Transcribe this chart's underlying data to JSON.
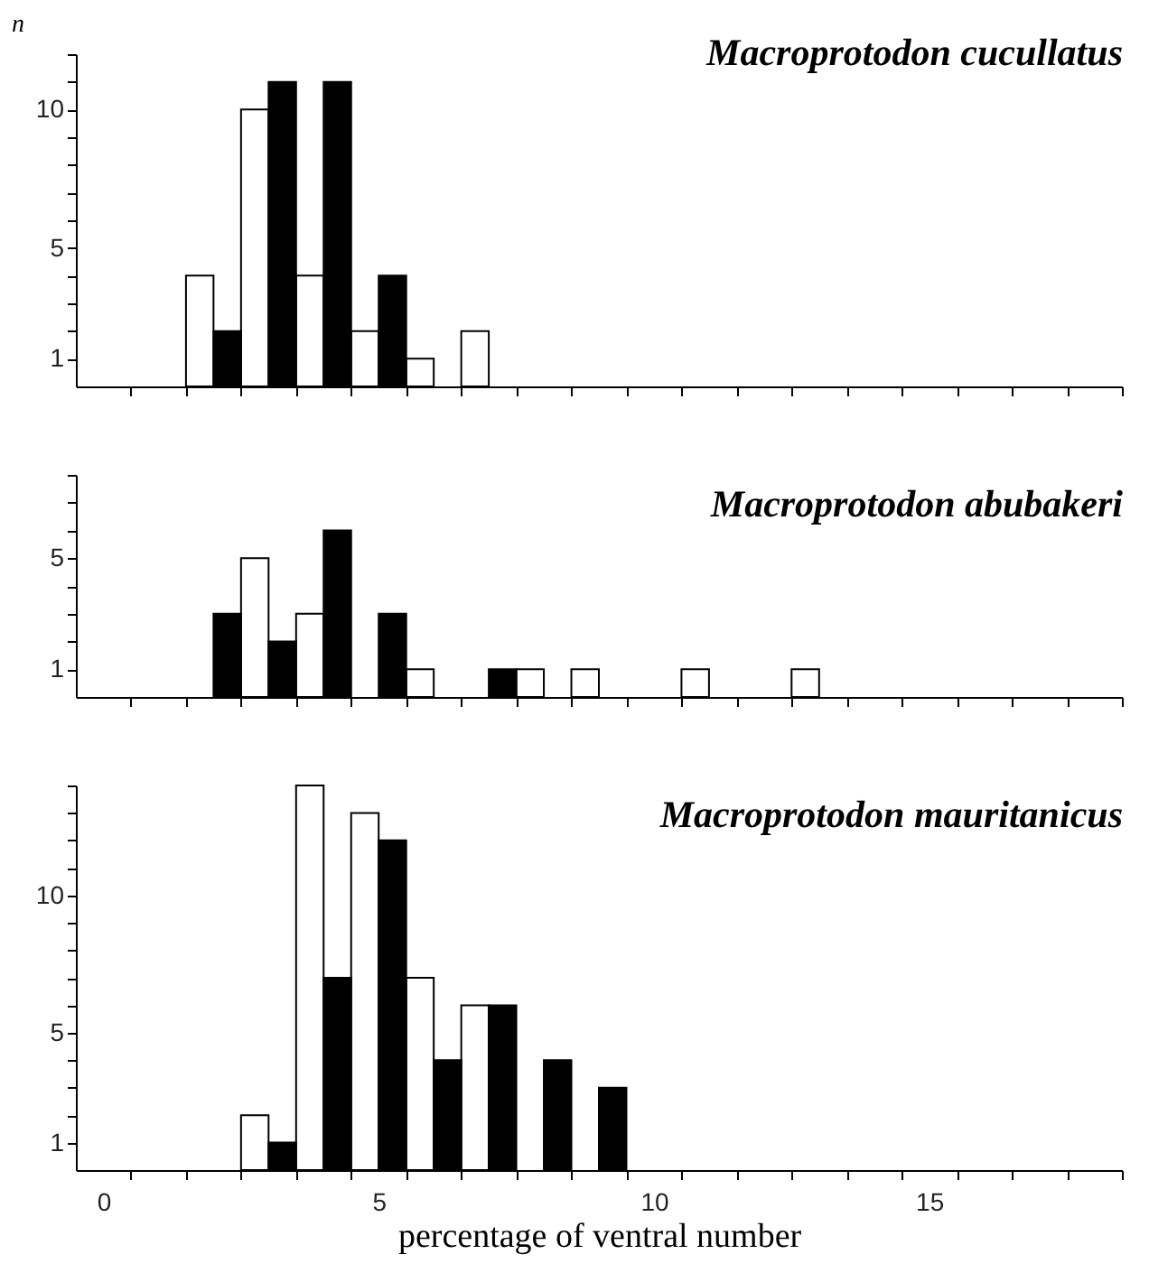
{
  "chart_data": [
    {
      "type": "bar",
      "title": "Macroprotodon  cucullatus",
      "ylabel": "n",
      "x": [
        2,
        3,
        4,
        5,
        6,
        7
      ],
      "series": [
        {
          "color": "#ffffff",
          "values": [
            4,
            10,
            4,
            2,
            1,
            2
          ]
        },
        {
          "color": "#000000",
          "values": [
            2,
            11,
            11,
            4,
            null,
            null
          ]
        }
      ],
      "xlim": [
        -0.5,
        18.5
      ],
      "xticks": [
        {
          "value": 0.5,
          "label": null
        },
        {
          "value": 1.5,
          "label": null
        },
        {
          "value": 2.5,
          "label": null
        },
        {
          "value": 3.5,
          "label": null
        },
        {
          "value": 4.5,
          "label": null
        },
        {
          "value": 5.5,
          "label": null
        },
        {
          "value": 6.5,
          "label": null
        },
        {
          "value": 7.5,
          "label": null
        },
        {
          "value": 8.5,
          "label": null
        },
        {
          "value": 9.5,
          "label": null
        },
        {
          "value": 10.5,
          "label": null
        },
        {
          "value": 11.5,
          "label": null
        },
        {
          "value": 12.5,
          "label": null
        },
        {
          "value": 13.5,
          "label": null
        },
        {
          "value": 14.5,
          "label": null
        },
        {
          "value": 15.5,
          "label": null
        },
        {
          "value": 16.5,
          "label": null
        },
        {
          "value": 17.5,
          "label": null
        },
        {
          "value": 18.5,
          "label": null
        }
      ],
      "ylim": [
        0,
        12
      ],
      "yticks": [
        1,
        {
          "value": 2,
          "label": null
        },
        {
          "value": 3,
          "label": null
        },
        {
          "value": 4,
          "label": null
        },
        5,
        {
          "value": 6,
          "label": null
        },
        {
          "value": 7,
          "label": null
        },
        {
          "value": 8,
          "label": null
        },
        {
          "value": 9,
          "label": null
        },
        10,
        {
          "value": 11,
          "label": null
        },
        {
          "value": 12,
          "label": null
        }
      ],
      "tick_labels": "y"
    },
    {
      "type": "bar",
      "title": "Macroprotodon  abubakeri",
      "x": [
        2,
        3,
        4,
        5,
        6,
        7,
        8,
        9,
        11,
        13
      ],
      "series": [
        {
          "color": "#ffffff",
          "values": [
            null,
            5,
            3,
            null,
            1,
            null,
            1,
            1,
            1,
            1
          ]
        },
        {
          "color": "#000000",
          "values": [
            3,
            2,
            6,
            3,
            null,
            1,
            null,
            null,
            null,
            null
          ]
        }
      ],
      "xlim": [
        -0.5,
        18.5
      ],
      "xticks": [
        {
          "value": 0.5,
          "label": null
        },
        {
          "value": 1.5,
          "label": null
        },
        {
          "value": 2.5,
          "label": null
        },
        {
          "value": 3.5,
          "label": null
        },
        {
          "value": 4.5,
          "label": null
        },
        {
          "value": 5.5,
          "label": null
        },
        {
          "value": 6.5,
          "label": null
        },
        {
          "value": 7.5,
          "label": null
        },
        {
          "value": 8.5,
          "label": null
        },
        {
          "value": 9.5,
          "label": null
        },
        {
          "value": 10.5,
          "label": null
        },
        {
          "value": 11.5,
          "label": null
        },
        {
          "value": 12.5,
          "label": null
        },
        {
          "value": 13.5,
          "label": null
        },
        {
          "value": 14.5,
          "label": null
        },
        {
          "value": 15.5,
          "label": null
        },
        {
          "value": 16.5,
          "label": null
        },
        {
          "value": 17.5,
          "label": null
        },
        {
          "value": 18.5,
          "label": null
        }
      ],
      "ylim": [
        0,
        8
      ],
      "yticks": [
        1,
        {
          "value": 2,
          "label": null
        },
        {
          "value": 3,
          "label": null
        },
        {
          "value": 4,
          "label": null
        },
        5,
        {
          "value": 6,
          "label": null
        },
        {
          "value": 7,
          "label": null
        },
        {
          "value": 8,
          "label": null
        }
      ],
      "tick_labels": "y"
    },
    {
      "type": "bar",
      "title": "Macroprotodon  mauritanicus",
      "xlabel": "percentage of ventral number",
      "x": [
        3,
        4,
        5,
        6,
        7,
        8,
        9
      ],
      "series": [
        {
          "color": "#ffffff",
          "values": [
            2,
            14,
            13,
            7,
            6,
            null,
            null
          ]
        },
        {
          "color": "#000000",
          "values": [
            1,
            7,
            12,
            4,
            6,
            4,
            3
          ]
        }
      ],
      "xlim": [
        -0.5,
        18.5
      ],
      "xticks": [
        0,
        {
          "value": 0.5,
          "label": null
        },
        {
          "value": 1.5,
          "label": null
        },
        {
          "value": 2.5,
          "label": null
        },
        {
          "value": 3.5,
          "label": null
        },
        {
          "value": 4.5,
          "label": null
        },
        5,
        {
          "value": 5.5,
          "label": null
        },
        {
          "value": 6.5,
          "label": null
        },
        {
          "value": 7.5,
          "label": null
        },
        {
          "value": 8.5,
          "label": null
        },
        {
          "value": 9.5,
          "label": null
        },
        10,
        {
          "value": 10.5,
          "label": null
        },
        {
          "value": 11.5,
          "label": null
        },
        {
          "value": 12.5,
          "label": null
        },
        {
          "value": 13.5,
          "label": null
        },
        {
          "value": 14.5,
          "label": null
        },
        15,
        {
          "value": 15.5,
          "label": null
        },
        {
          "value": 16.5,
          "label": null
        },
        {
          "value": 17.5,
          "label": null
        },
        {
          "value": 18.5,
          "label": null
        }
      ],
      "ylim": [
        0,
        14
      ],
      "yticks": [
        1,
        {
          "value": 2,
          "label": null
        },
        {
          "value": 3,
          "label": null
        },
        {
          "value": 4,
          "label": null
        },
        5,
        {
          "value": 6,
          "label": null
        },
        {
          "value": 7,
          "label": null
        },
        {
          "value": 8,
          "label": null
        },
        {
          "value": 9,
          "label": null
        },
        10,
        {
          "value": 11,
          "label": null
        },
        {
          "value": 12,
          "label": null
        },
        {
          "value": 13,
          "label": null
        },
        {
          "value": 14,
          "label": null
        }
      ]
    }
  ]
}
